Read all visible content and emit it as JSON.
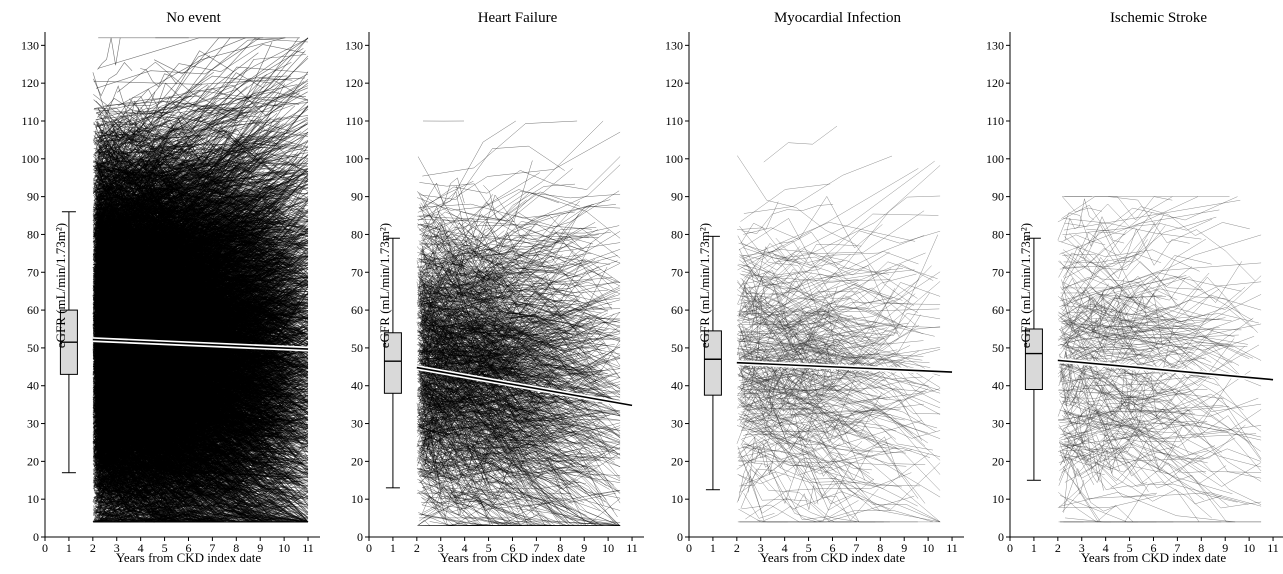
{
  "chart_data": [
    {
      "type": "line",
      "title": "No event",
      "xlabel": "Years from CKD index date",
      "ylabel": "eGFR (mL/min/1.73m²)",
      "xlim": [
        0,
        11.5
      ],
      "ylim": [
        0,
        133
      ],
      "x_ticks": [
        "0",
        "1",
        "2",
        "3",
        "4",
        "5",
        "6",
        "7",
        "8",
        "9",
        "10",
        "11"
      ],
      "y_ticks": [
        "0",
        "10",
        "20",
        "30",
        "40",
        "50",
        "60",
        "70",
        "80",
        "90",
        "100",
        "110",
        "120",
        "130"
      ],
      "boxplot": {
        "x": 1,
        "min": 17,
        "q1": 43,
        "median": 51.5,
        "q3": 60,
        "max": 86
      },
      "trend": {
        "x": [
          2,
          11
        ],
        "y": [
          52.2,
          49.7
        ]
      },
      "trajectories": {
        "count": 9000,
        "x_range": [
          2,
          11
        ],
        "y_range": [
          4,
          132
        ],
        "color": "#000000"
      }
    },
    {
      "type": "line",
      "title": "Heart Failure",
      "xlabel": "Years from CKD index date",
      "ylabel": "eGFR (mL/min/1.73m²)",
      "xlim": [
        0,
        11.5
      ],
      "ylim": [
        0,
        133
      ],
      "x_ticks": [
        "0",
        "1",
        "2",
        "3",
        "4",
        "5",
        "6",
        "7",
        "8",
        "9",
        "10",
        "11"
      ],
      "y_ticks": [
        "0",
        "10",
        "20",
        "30",
        "40",
        "50",
        "60",
        "70",
        "80",
        "90",
        "100",
        "110",
        "120",
        "130"
      ],
      "boxplot": {
        "x": 1,
        "min": 13,
        "q1": 38,
        "median": 46.5,
        "q3": 54,
        "max": 79
      },
      "trend": {
        "x": [
          2,
          11
        ],
        "y": [
          44.8,
          34.8
        ]
      },
      "trajectories": {
        "count": 1300,
        "x_range": [
          2,
          10.5
        ],
        "y_range": [
          3,
          110
        ],
        "color": "#000000"
      }
    },
    {
      "type": "line",
      "title": "Myocardial Infection",
      "xlabel": "Years from CKD index date",
      "ylabel": "eGFR (mL/min/1.73m²)",
      "xlim": [
        0,
        11.5
      ],
      "ylim": [
        0,
        133
      ],
      "x_ticks": [
        "0",
        "1",
        "2",
        "3",
        "4",
        "5",
        "6",
        "7",
        "8",
        "9",
        "10",
        "11"
      ],
      "y_ticks": [
        "0",
        "10",
        "20",
        "30",
        "40",
        "50",
        "60",
        "70",
        "80",
        "90",
        "100",
        "110",
        "120",
        "130"
      ],
      "boxplot": {
        "x": 1,
        "min": 12.5,
        "q1": 37.5,
        "median": 47,
        "q3": 54.5,
        "max": 79.5
      },
      "trend": {
        "x": [
          2,
          11
        ],
        "y": [
          46.1,
          43.6
        ]
      },
      "trajectories": {
        "count": 380,
        "x_range": [
          2,
          10.5
        ],
        "y_range": [
          4,
          118
        ],
        "color": "#333333"
      }
    },
    {
      "type": "line",
      "title": "Ischemic Stroke",
      "xlabel": "Years from CKD index date",
      "ylabel": "eGFR (mL/min/1.73m²)",
      "xlim": [
        0,
        11.5
      ],
      "ylim": [
        0,
        133
      ],
      "x_ticks": [
        "0",
        "1",
        "2",
        "3",
        "4",
        "5",
        "6",
        "7",
        "8",
        "9",
        "10",
        "11"
      ],
      "y_ticks": [
        "0",
        "10",
        "20",
        "30",
        "40",
        "50",
        "60",
        "70",
        "80",
        "90",
        "100",
        "110",
        "120",
        "130"
      ],
      "boxplot": {
        "x": 1,
        "min": 15,
        "q1": 39,
        "median": 48.5,
        "q3": 55,
        "max": 79
      },
      "trend": {
        "x": [
          2,
          11
        ],
        "y": [
          46.7,
          41.6
        ]
      },
      "trajectories": {
        "count": 300,
        "x_range": [
          2,
          10.5
        ],
        "y_range": [
          4,
          90
        ],
        "color": "#333333"
      }
    }
  ]
}
